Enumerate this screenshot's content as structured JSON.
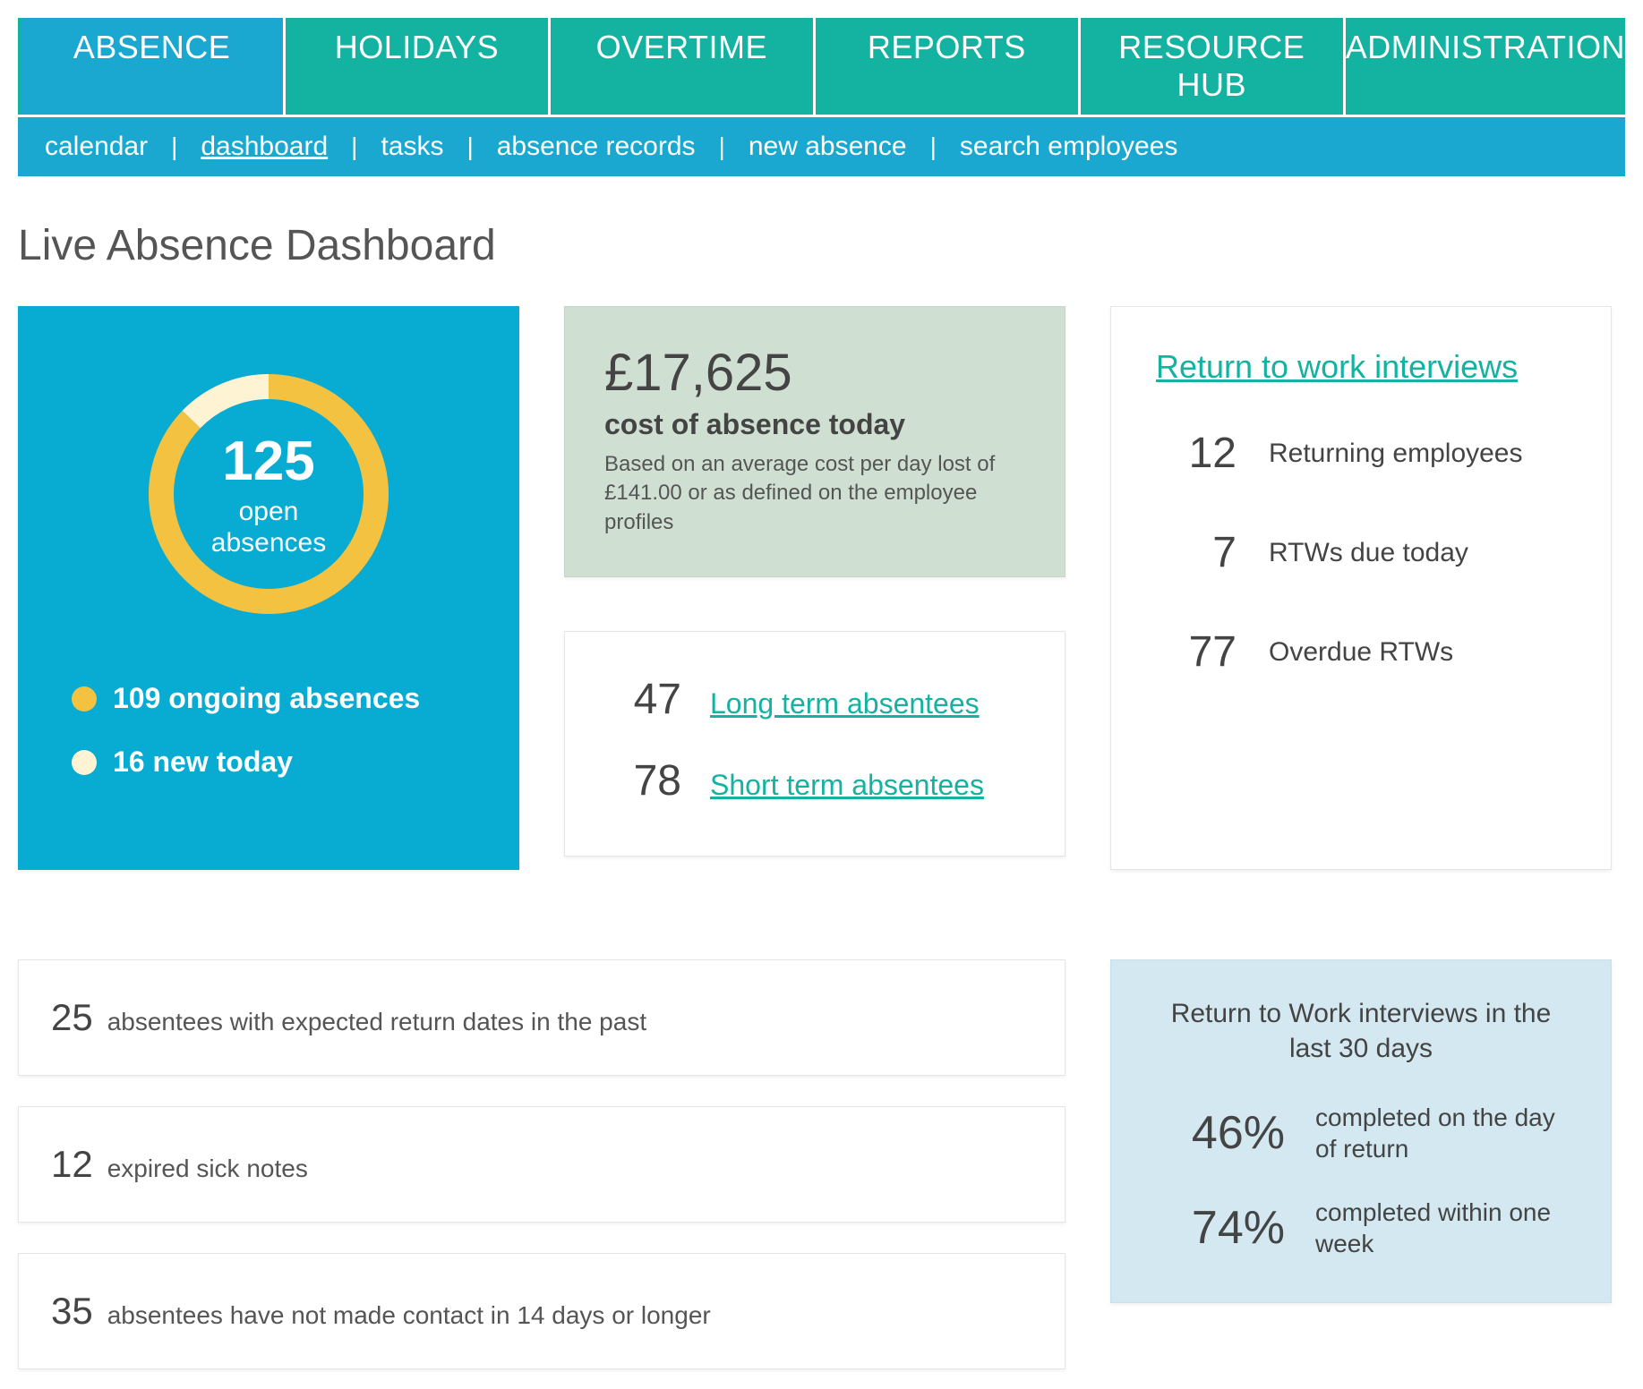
{
  "topnav": {
    "items": [
      "ABSENCE",
      "HOLIDAYS",
      "OVERTIME",
      "REPORTS",
      "RESOURCE HUB",
      "ADMINISTRATION"
    ],
    "active_index": 0,
    "bg_color": "#14b2a0",
    "active_bg_color": "#1aa8d0"
  },
  "subnav": {
    "items": [
      "calendar",
      "dashboard",
      "tasks",
      "absence records",
      "new absence",
      "search employees"
    ],
    "active_index": 1,
    "bg_color": "#1aa8d0"
  },
  "page_title": "Live Absence Dashboard",
  "open_absences": {
    "total": 125,
    "label_line1": "open",
    "label_line2": "absences",
    "ongoing": {
      "count": 109,
      "label": "109 ongoing absences",
      "color": "#f2c240"
    },
    "new_today": {
      "count": 16,
      "label": "16 new today",
      "color": "#fef4d4"
    },
    "donut": {
      "type": "donut",
      "segments": [
        {
          "value": 109,
          "color": "#f2c240"
        },
        {
          "value": 16,
          "color": "#fef4d4"
        }
      ],
      "stroke_width": 28,
      "radius": 120
    },
    "card_bg": "#08abd2"
  },
  "cost": {
    "value": "£17,625",
    "title": "cost of absence today",
    "description": "Based on an average cost per day lost of £141.00 or as defined on the employee profiles",
    "card_bg": "#cfe0d2"
  },
  "terms": {
    "long_term": {
      "count": 47,
      "label": "Long term absentees"
    },
    "short_term": {
      "count": 78,
      "label": "Short term absentees"
    },
    "link_color": "#14b2a0"
  },
  "rtw": {
    "title": "Return to work interviews",
    "rows": [
      {
        "count": 12,
        "label": "Returning employees"
      },
      {
        "count": 7,
        "label": "RTWs due today"
      },
      {
        "count": 77,
        "label": "Overdue RTWs"
      }
    ],
    "link_color": "#14b2a0"
  },
  "alerts": [
    {
      "count": 25,
      "text": "absentees with expected return dates in the past"
    },
    {
      "count": 12,
      "text": "expired sick notes"
    },
    {
      "count": 35,
      "text": "absentees have not made contact in 14 days or longer"
    }
  ],
  "rtw30": {
    "title": "Return to Work interviews in the last 30 days",
    "rows": [
      {
        "pct": "46%",
        "label": "completed on the day of return"
      },
      {
        "pct": "74%",
        "label": "completed within one week"
      }
    ],
    "card_bg": "#d3e8f1"
  }
}
